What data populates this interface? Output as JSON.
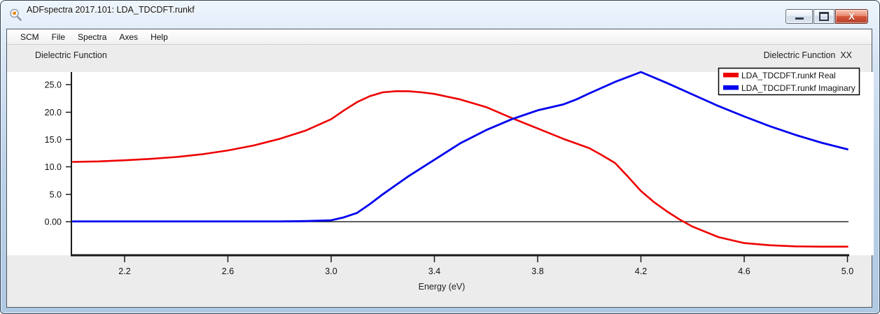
{
  "window": {
    "title": "ADFspectra 2017.101: LDA_TDCDFT.runkf"
  },
  "menu": {
    "items": [
      "SCM",
      "File",
      "Spectra",
      "Axes",
      "Help"
    ]
  },
  "headers": {
    "left": "Dielectric Function",
    "right": "Dielectric Function  XX"
  },
  "chart_data": {
    "type": "line",
    "title": "Dielectric Function XX",
    "xlabel": "Energy (eV)",
    "ylabel": "",
    "x_range": [
      2.0,
      5.0
    ],
    "x_ticks": [
      2.2,
      2.6,
      3.0,
      3.4,
      3.8,
      4.2,
      4.6,
      5.0
    ],
    "x_tick_labels": [
      "2.2",
      "2.6",
      "3.0",
      "3.4",
      "3.8",
      "4.2",
      "4.6",
      "5.0"
    ],
    "y_ticks": [
      25,
      20,
      15,
      10,
      5,
      0
    ],
    "y_tick_labels": [
      "25.0",
      "20.0",
      "15.0",
      "10.0",
      "5.0",
      "0.00"
    ],
    "y_visible_range": [
      -5.9,
      27.3
    ],
    "grid": false,
    "zero_line": true,
    "legend_position": "top-right",
    "colors": {
      "real": "#ee0000",
      "imaginary": "#0000ee",
      "axis": "#1a1a1a",
      "plot_bg": "#ffffff",
      "pane_bg": "#ececec"
    },
    "series": [
      {
        "name": "LDA_TDCDFT.runkf Real",
        "color": "#ee0000",
        "x": [
          2.0,
          2.1,
          2.2,
          2.3,
          2.4,
          2.5,
          2.6,
          2.7,
          2.8,
          2.9,
          3.0,
          3.05,
          3.1,
          3.15,
          3.2,
          3.25,
          3.3,
          3.35,
          3.4,
          3.5,
          3.6,
          3.7,
          3.8,
          3.9,
          4.0,
          4.05,
          4.1,
          4.15,
          4.2,
          4.25,
          4.3,
          4.35,
          4.4,
          4.5,
          4.6,
          4.7,
          4.8,
          4.9,
          5.0
        ],
        "y": [
          10.9,
          11.0,
          11.2,
          11.45,
          11.8,
          12.3,
          13.0,
          13.9,
          15.1,
          16.6,
          18.7,
          20.3,
          21.8,
          22.9,
          23.6,
          23.8,
          23.8,
          23.6,
          23.3,
          22.3,
          20.9,
          18.9,
          17.0,
          15.1,
          13.4,
          12.1,
          10.7,
          8.2,
          5.6,
          3.6,
          1.9,
          0.4,
          -0.9,
          -2.8,
          -3.9,
          -4.3,
          -4.5,
          -4.55,
          -4.55
        ]
      },
      {
        "name": "LDA_TDCDFT.runkf Imaginary",
        "color": "#0000ee",
        "x": [
          2.0,
          2.2,
          2.4,
          2.6,
          2.8,
          2.9,
          3.0,
          3.05,
          3.1,
          3.15,
          3.2,
          3.3,
          3.4,
          3.5,
          3.6,
          3.7,
          3.8,
          3.9,
          3.95,
          4.0,
          4.1,
          4.2,
          4.3,
          4.4,
          4.5,
          4.6,
          4.7,
          4.8,
          4.9,
          5.0
        ],
        "y": [
          0.05,
          0.05,
          0.05,
          0.05,
          0.05,
          0.1,
          0.25,
          0.8,
          1.6,
          3.2,
          5.0,
          8.3,
          11.3,
          14.3,
          16.7,
          18.7,
          20.3,
          21.4,
          22.3,
          23.4,
          25.5,
          27.3,
          25.3,
          23.2,
          21.1,
          19.2,
          17.4,
          15.8,
          14.4,
          13.2
        ]
      }
    ]
  }
}
